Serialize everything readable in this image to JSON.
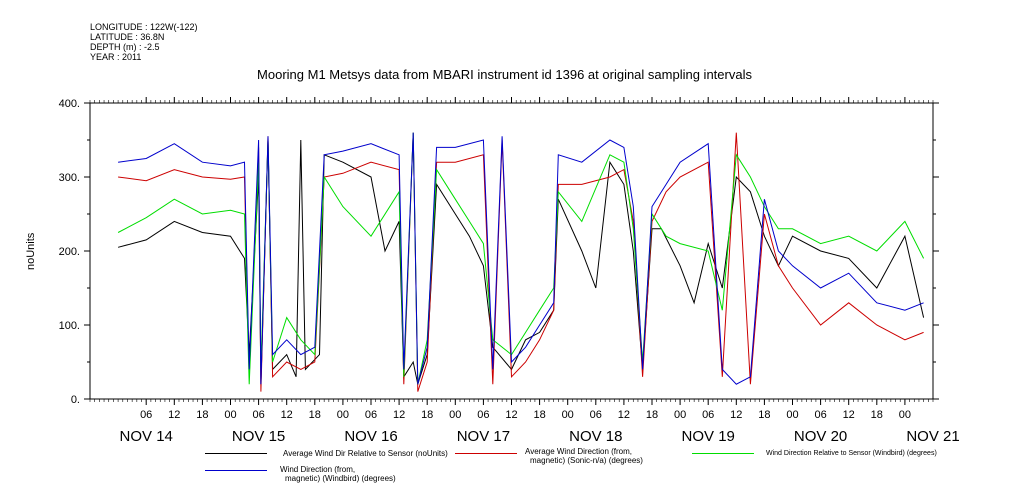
{
  "meta": {
    "longitude": "LONGITUDE : 122W(-122)",
    "latitude": "LATITUDE : 36.8N",
    "depth": "DEPTH (m) : -2.5",
    "year": "YEAR : 2011"
  },
  "chart_data": {
    "type": "line",
    "title": "Mooring M1 Metsys data from MBARI instrument id 1396 at original sampling intervals",
    "xlabel": "",
    "ylabel": "noUnits",
    "ylim": [
      0,
      400
    ],
    "yticks": [
      "0.",
      "100.",
      "200.",
      "300.",
      "400."
    ],
    "xlim": [
      "2011-11-13T18:00",
      "2011-11-21T06:00"
    ],
    "hour_ticks": [
      "06",
      "12",
      "18",
      "00",
      "06",
      "12",
      "18",
      "00",
      "06",
      "12",
      "18",
      "00",
      "06",
      "12",
      "18",
      "00",
      "06",
      "12",
      "18",
      "00",
      "06",
      "12",
      "18",
      "00",
      "06",
      "12",
      "18",
      "00"
    ],
    "day_labels": [
      "NOV 14",
      "NOV 15",
      "NOV 16",
      "NOV 17",
      "NOV 18",
      "NOV 19",
      "NOV 20",
      "NOV 21"
    ],
    "series": [
      {
        "name": "Average Wind Dir Relative to Sensor (noUnits)",
        "color": "#000000",
        "points": [
          [
            "2011-11-14T00:00",
            205
          ],
          [
            "2011-11-14T06:00",
            215
          ],
          [
            "2011-11-14T12:00",
            240
          ],
          [
            "2011-11-14T18:00",
            225
          ],
          [
            "2011-11-15T00:00",
            220
          ],
          [
            "2011-11-15T03:00",
            190
          ],
          [
            "2011-11-15T04:00",
            60
          ],
          [
            "2011-11-15T06:00",
            300
          ],
          [
            "2011-11-15T06:30",
            20
          ],
          [
            "2011-11-15T08:00",
            350
          ],
          [
            "2011-11-15T09:00",
            40
          ],
          [
            "2011-11-15T12:00",
            60
          ],
          [
            "2011-11-15T14:00",
            30
          ],
          [
            "2011-11-15T15:00",
            350
          ],
          [
            "2011-11-15T16:00",
            40
          ],
          [
            "2011-11-15T19:00",
            60
          ],
          [
            "2011-11-15T20:00",
            330
          ],
          [
            "2011-11-16T00:00",
            320
          ],
          [
            "2011-11-16T06:00",
            300
          ],
          [
            "2011-11-16T09:00",
            200
          ],
          [
            "2011-11-16T12:00",
            240
          ],
          [
            "2011-11-16T13:00",
            30
          ],
          [
            "2011-11-16T15:00",
            50
          ],
          [
            "2011-11-16T16:00",
            20
          ],
          [
            "2011-11-16T18:00",
            60
          ],
          [
            "2011-11-16T20:00",
            290
          ],
          [
            "2011-11-17T00:00",
            250
          ],
          [
            "2011-11-17T03:00",
            220
          ],
          [
            "2011-11-17T06:00",
            180
          ],
          [
            "2011-11-17T08:00",
            70
          ],
          [
            "2011-11-17T12:00",
            40
          ],
          [
            "2011-11-17T15:00",
            80
          ],
          [
            "2011-11-17T18:00",
            90
          ],
          [
            "2011-11-17T21:00",
            120
          ],
          [
            "2011-11-17T22:00",
            270
          ],
          [
            "2011-11-18T03:00",
            200
          ],
          [
            "2011-11-18T06:00",
            150
          ],
          [
            "2011-11-18T09:00",
            320
          ],
          [
            "2011-11-18T12:00",
            290
          ],
          [
            "2011-11-18T14:00",
            200
          ],
          [
            "2011-11-18T16:00",
            40
          ],
          [
            "2011-11-18T18:00",
            230
          ],
          [
            "2011-11-18T20:00",
            230
          ],
          [
            "2011-11-19T00:00",
            180
          ],
          [
            "2011-11-19T03:00",
            130
          ],
          [
            "2011-11-19T06:00",
            210
          ],
          [
            "2011-11-19T09:00",
            150
          ],
          [
            "2011-11-19T12:00",
            300
          ],
          [
            "2011-11-19T15:00",
            280
          ],
          [
            "2011-11-19T18:00",
            220
          ],
          [
            "2011-11-19T21:00",
            180
          ],
          [
            "2011-11-20T00:00",
            220
          ],
          [
            "2011-11-20T06:00",
            200
          ],
          [
            "2011-11-20T12:00",
            190
          ],
          [
            "2011-11-20T18:00",
            150
          ],
          [
            "2011-11-21T00:00",
            220
          ],
          [
            "2011-11-21T04:00",
            110
          ]
        ]
      },
      {
        "name": "Average Wind Direction (from, magnetic) (Sonic-n/a) (degrees)",
        "color": "#cc0000",
        "points": [
          [
            "2011-11-14T00:00",
            300
          ],
          [
            "2011-11-14T06:00",
            295
          ],
          [
            "2011-11-14T12:00",
            310
          ],
          [
            "2011-11-14T18:00",
            300
          ],
          [
            "2011-11-15T00:00",
            297
          ],
          [
            "2011-11-15T03:00",
            300
          ],
          [
            "2011-11-15T04:00",
            30
          ],
          [
            "2011-11-15T06:00",
            340
          ],
          [
            "2011-11-15T06:30",
            10
          ],
          [
            "2011-11-15T08:00",
            355
          ],
          [
            "2011-11-15T09:00",
            30
          ],
          [
            "2011-11-15T12:00",
            50
          ],
          [
            "2011-11-15T15:00",
            40
          ],
          [
            "2011-11-15T18:00",
            50
          ],
          [
            "2011-11-15T20:00",
            300
          ],
          [
            "2011-11-16T00:00",
            305
          ],
          [
            "2011-11-16T06:00",
            320
          ],
          [
            "2011-11-16T12:00",
            310
          ],
          [
            "2011-11-16T13:00",
            20
          ],
          [
            "2011-11-16T15:00",
            360
          ],
          [
            "2011-11-16T16:00",
            10
          ],
          [
            "2011-11-16T18:00",
            50
          ],
          [
            "2011-11-16T20:00",
            320
          ],
          [
            "2011-11-17T00:00",
            320
          ],
          [
            "2011-11-17T06:00",
            330
          ],
          [
            "2011-11-17T08:00",
            20
          ],
          [
            "2011-11-17T10:00",
            350
          ],
          [
            "2011-11-17T12:00",
            30
          ],
          [
            "2011-11-17T15:00",
            50
          ],
          [
            "2011-11-17T18:00",
            80
          ],
          [
            "2011-11-17T21:00",
            120
          ],
          [
            "2011-11-17T22:00",
            290
          ],
          [
            "2011-11-18T03:00",
            290
          ],
          [
            "2011-11-18T09:00",
            300
          ],
          [
            "2011-11-18T12:00",
            310
          ],
          [
            "2011-11-18T14:00",
            240
          ],
          [
            "2011-11-18T16:00",
            30
          ],
          [
            "2011-11-18T18:00",
            240
          ],
          [
            "2011-11-18T21:00",
            280
          ],
          [
            "2011-11-19T00:00",
            300
          ],
          [
            "2011-11-19T06:00",
            320
          ],
          [
            "2011-11-19T09:00",
            30
          ],
          [
            "2011-11-19T12:00",
            360
          ],
          [
            "2011-11-19T15:00",
            20
          ],
          [
            "2011-11-19T18:00",
            250
          ],
          [
            "2011-11-19T21:00",
            180
          ],
          [
            "2011-11-20T00:00",
            150
          ],
          [
            "2011-11-20T06:00",
            100
          ],
          [
            "2011-11-20T12:00",
            130
          ],
          [
            "2011-11-20T18:00",
            100
          ],
          [
            "2011-11-21T00:00",
            80
          ],
          [
            "2011-11-21T04:00",
            90
          ]
        ]
      },
      {
        "name": "Wind Direction Relative to Sensor (Windbird) (degrees)",
        "color": "#00dd00",
        "points": [
          [
            "2011-11-14T00:00",
            225
          ],
          [
            "2011-11-14T06:00",
            245
          ],
          [
            "2011-11-14T12:00",
            270
          ],
          [
            "2011-11-14T18:00",
            250
          ],
          [
            "2011-11-15T00:00",
            255
          ],
          [
            "2011-11-15T03:00",
            250
          ],
          [
            "2011-11-15T04:00",
            20
          ],
          [
            "2011-11-15T06:00",
            320
          ],
          [
            "2011-11-15T06:30",
            40
          ],
          [
            "2011-11-15T08:00",
            350
          ],
          [
            "2011-11-15T09:00",
            50
          ],
          [
            "2011-11-15T12:00",
            110
          ],
          [
            "2011-11-15T15:00",
            80
          ],
          [
            "2011-11-15T18:00",
            60
          ],
          [
            "2011-11-15T20:00",
            300
          ],
          [
            "2011-11-16T00:00",
            260
          ],
          [
            "2011-11-16T06:00",
            220
          ],
          [
            "2011-11-16T12:00",
            280
          ],
          [
            "2011-11-16T13:00",
            30
          ],
          [
            "2011-11-16T15:00",
            360
          ],
          [
            "2011-11-16T16:00",
            20
          ],
          [
            "2011-11-16T18:00",
            80
          ],
          [
            "2011-11-16T20:00",
            310
          ],
          [
            "2011-11-17T00:00",
            270
          ],
          [
            "2011-11-17T03:00",
            240
          ],
          [
            "2011-11-17T06:00",
            210
          ],
          [
            "2011-11-17T08:00",
            80
          ],
          [
            "2011-11-17T12:00",
            60
          ],
          [
            "2011-11-17T15:00",
            90
          ],
          [
            "2011-11-17T18:00",
            120
          ],
          [
            "2011-11-17T21:00",
            150
          ],
          [
            "2011-11-17T22:00",
            280
          ],
          [
            "2011-11-18T03:00",
            240
          ],
          [
            "2011-11-18T09:00",
            330
          ],
          [
            "2011-11-18T12:00",
            320
          ],
          [
            "2011-11-18T14:00",
            230
          ],
          [
            "2011-11-18T16:00",
            50
          ],
          [
            "2011-11-18T18:00",
            250
          ],
          [
            "2011-11-18T21:00",
            220
          ],
          [
            "2011-11-19T00:00",
            210
          ],
          [
            "2011-11-19T06:00",
            200
          ],
          [
            "2011-11-19T09:00",
            120
          ],
          [
            "2011-11-19T12:00",
            330
          ],
          [
            "2011-11-19T15:00",
            300
          ],
          [
            "2011-11-19T18:00",
            260
          ],
          [
            "2011-11-19T21:00",
            230
          ],
          [
            "2011-11-20T00:00",
            230
          ],
          [
            "2011-11-20T06:00",
            210
          ],
          [
            "2011-11-20T12:00",
            220
          ],
          [
            "2011-11-20T18:00",
            200
          ],
          [
            "2011-11-21T00:00",
            240
          ],
          [
            "2011-11-21T04:00",
            190
          ]
        ]
      },
      {
        "name": "Wind Direction (from, magnetic) (Windbird) (degrees)",
        "color": "#0000cc",
        "points": [
          [
            "2011-11-14T00:00",
            320
          ],
          [
            "2011-11-14T06:00",
            325
          ],
          [
            "2011-11-14T12:00",
            345
          ],
          [
            "2011-11-14T18:00",
            320
          ],
          [
            "2011-11-15T00:00",
            315
          ],
          [
            "2011-11-15T03:00",
            320
          ],
          [
            "2011-11-15T04:00",
            40
          ],
          [
            "2011-11-15T06:00",
            350
          ],
          [
            "2011-11-15T06:30",
            20
          ],
          [
            "2011-11-15T08:00",
            355
          ],
          [
            "2011-11-15T09:00",
            60
          ],
          [
            "2011-11-15T12:00",
            80
          ],
          [
            "2011-11-15T15:00",
            60
          ],
          [
            "2011-11-15T18:00",
            70
          ],
          [
            "2011-11-15T20:00",
            330
          ],
          [
            "2011-11-16T00:00",
            335
          ],
          [
            "2011-11-16T06:00",
            345
          ],
          [
            "2011-11-16T12:00",
            330
          ],
          [
            "2011-11-16T13:00",
            40
          ],
          [
            "2011-11-16T15:00",
            360
          ],
          [
            "2011-11-16T16:00",
            20
          ],
          [
            "2011-11-16T18:00",
            70
          ],
          [
            "2011-11-16T20:00",
            340
          ],
          [
            "2011-11-17T00:00",
            340
          ],
          [
            "2011-11-17T06:00",
            350
          ],
          [
            "2011-11-17T08:00",
            40
          ],
          [
            "2011-11-17T10:00",
            355
          ],
          [
            "2011-11-17T12:00",
            50
          ],
          [
            "2011-11-17T15:00",
            70
          ],
          [
            "2011-11-17T18:00",
            100
          ],
          [
            "2011-11-17T21:00",
            130
          ],
          [
            "2011-11-17T22:00",
            330
          ],
          [
            "2011-11-18T03:00",
            320
          ],
          [
            "2011-11-18T09:00",
            350
          ],
          [
            "2011-11-18T12:00",
            340
          ],
          [
            "2011-11-18T14:00",
            260
          ],
          [
            "2011-11-18T16:00",
            40
          ],
          [
            "2011-11-18T18:00",
            260
          ],
          [
            "2011-11-18T21:00",
            290
          ],
          [
            "2011-11-19T00:00",
            320
          ],
          [
            "2011-11-19T06:00",
            345
          ],
          [
            "2011-11-19T09:00",
            40
          ],
          [
            "2011-11-19T12:00",
            20
          ],
          [
            "2011-11-19T15:00",
            30
          ],
          [
            "2011-11-19T18:00",
            270
          ],
          [
            "2011-11-19T21:00",
            200
          ],
          [
            "2011-11-20T00:00",
            180
          ],
          [
            "2011-11-20T06:00",
            150
          ],
          [
            "2011-11-20T12:00",
            170
          ],
          [
            "2011-11-20T18:00",
            130
          ],
          [
            "2011-11-21T00:00",
            120
          ],
          [
            "2011-11-21T04:00",
            130
          ]
        ]
      }
    ]
  },
  "legend": [
    {
      "line1": "Average Wind Dir Relative to Sensor (noUnits)",
      "line2": "",
      "color": "#000000"
    },
    {
      "line1": "Average Wind Direction (from,",
      "line2": "magnetic) (Sonic-n/a) (degrees)",
      "color": "#cc0000"
    },
    {
      "line1": "Wind Direction Relative to Sensor (Windbird) (degrees)",
      "line2": "",
      "color": "#00dd00"
    },
    {
      "line1": "Wind Direction (from,",
      "line2": "magnetic) (Windbird) (degrees)",
      "color": "#0000cc"
    }
  ]
}
